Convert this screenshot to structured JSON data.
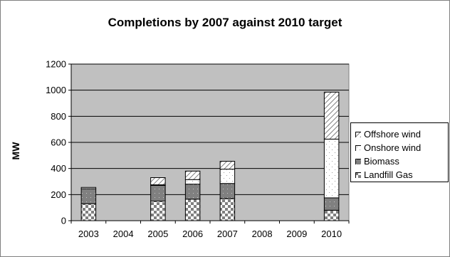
{
  "chart_data": {
    "type": "bar",
    "stacked": true,
    "title": "Completions by 2007 against 2010 target",
    "xlabel": "",
    "ylabel": "MW",
    "ylim": [
      0,
      1200
    ],
    "yticks": [
      0,
      200,
      400,
      600,
      800,
      1000,
      1200
    ],
    "grid": true,
    "legend_position": "right",
    "plot_background": "#c0c0c0",
    "categories": [
      "2003",
      "2004",
      "2005",
      "2006",
      "2007",
      "2008",
      "2009",
      "2010"
    ],
    "series": [
      {
        "name": "Landfill Gas",
        "color": "#ffffff",
        "pattern": "checker",
        "values": [
          130,
          0,
          150,
          165,
          170,
          0,
          0,
          80
        ]
      },
      {
        "name": "Biomass",
        "color": "#808080",
        "pattern": "dotted-dark",
        "values": [
          115,
          0,
          120,
          115,
          115,
          0,
          0,
          95
        ]
      },
      {
        "name": "Onshore wind",
        "color": "#ffffff",
        "pattern": "dotted-light",
        "values": [
          10,
          0,
          5,
          35,
          110,
          0,
          0,
          450
        ]
      },
      {
        "name": "Offshore wind",
        "color": "#ffffff",
        "pattern": "diagonal",
        "values": [
          0,
          0,
          55,
          65,
          60,
          0,
          0,
          360
        ]
      }
    ],
    "legend_order": [
      "Offshore wind",
      "Onshore wind",
      "Biomass",
      "Landfill Gas"
    ]
  }
}
